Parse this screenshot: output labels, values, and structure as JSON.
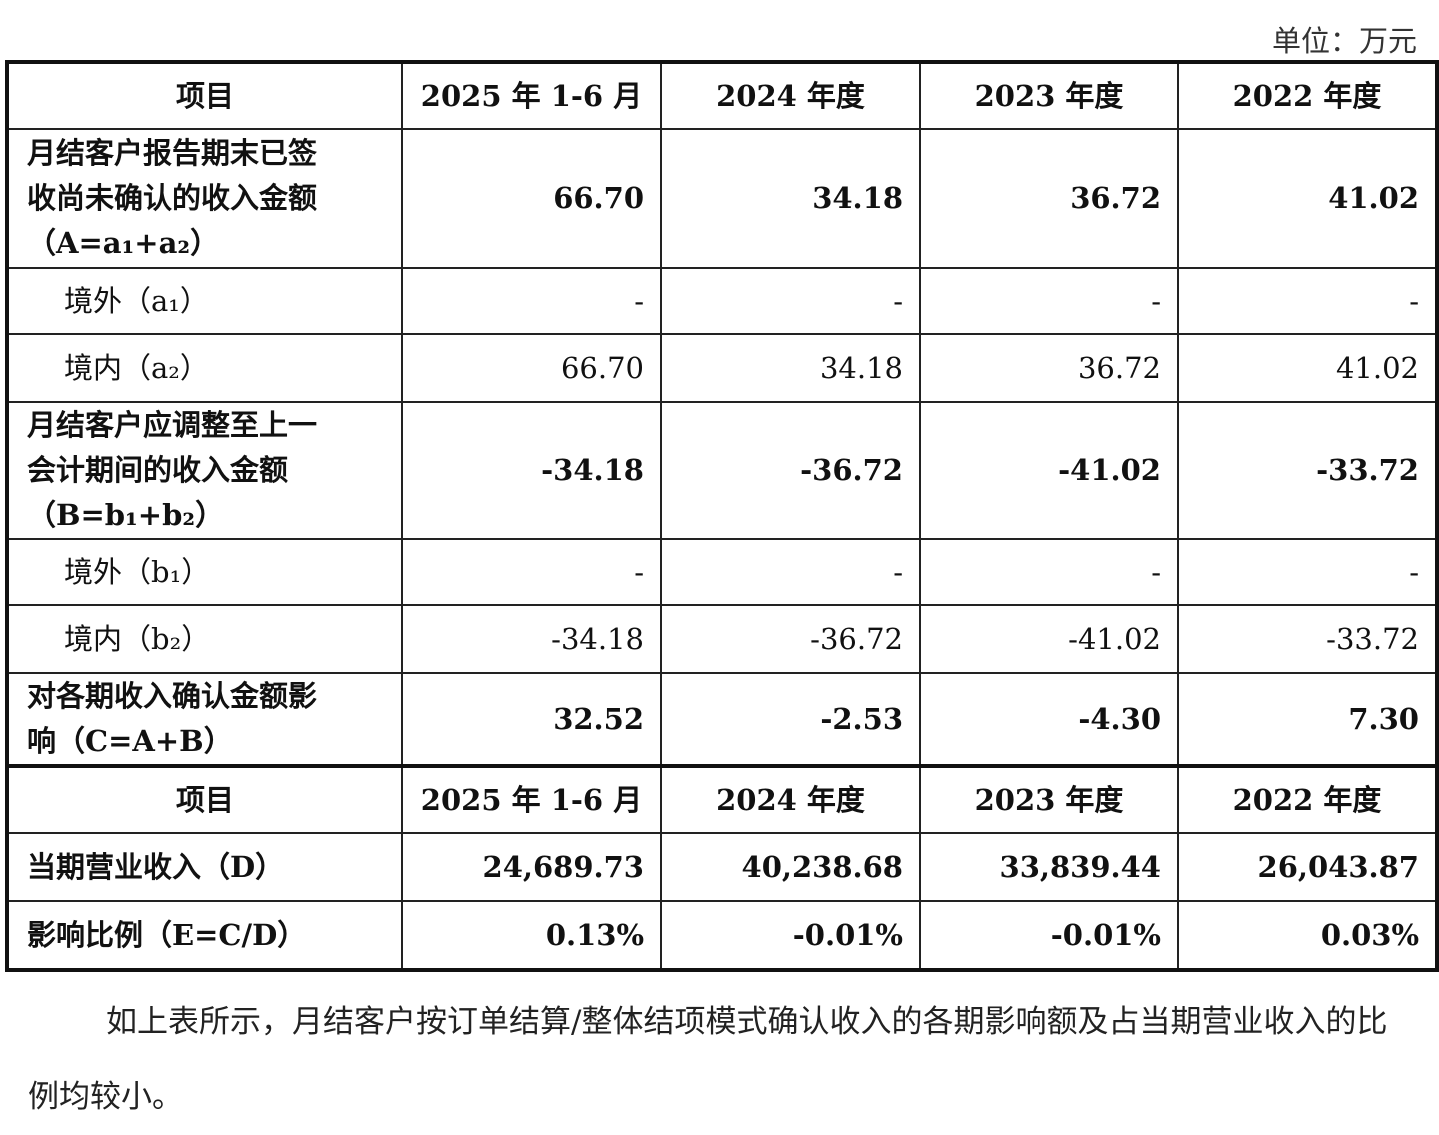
{
  "unit_label": "单位：万元",
  "header": [
    "项目",
    "2025 年 1-6 月",
    "2024 年度",
    "2023 年度",
    "2022 年度"
  ],
  "rows": [
    {
      "label": [
        "月结客户报告期末已签",
        "收尚未确认的收入金额",
        "（A=a₁+a₂）"
      ],
      "values": [
        "66.70",
        "34.18",
        "36.72",
        "41.02"
      ]
    },
    {
      "label": [
        "境外（a₁）"
      ],
      "values": [
        "-",
        "-",
        "-",
        "-"
      ]
    },
    {
      "label": [
        "境内（a₂）"
      ],
      "values": [
        "66.70",
        "34.18",
        "36.72",
        "41.02"
      ]
    },
    {
      "label": [
        "月结客户应调整至上一",
        "会计期间的收入金额",
        "（B=b₁+b₂）"
      ],
      "values": [
        "-34.18",
        "-36.72",
        "-41.02",
        "-33.72"
      ]
    },
    {
      "label": [
        "境外（b₁）"
      ],
      "values": [
        "-",
        "-",
        "-",
        "-"
      ]
    },
    {
      "label": [
        "境内（b₂）"
      ],
      "values": [
        "-34.18",
        "-36.72",
        "-41.02",
        "-33.72"
      ]
    },
    {
      "label": [
        "对各期收入确认金额影",
        "响（C=A+B）"
      ],
      "values": [
        "32.52",
        "-2.53",
        "-4.30",
        "7.30"
      ]
    }
  ],
  "header2": [
    "项目",
    "2025 年 1-6 月",
    "2024 年度",
    "2023 年度",
    "2022 年度"
  ],
  "rows2": [
    {
      "label": "当期营业收入（D）",
      "values": [
        "24,689.73",
        "40,238.68",
        "33,839.44",
        "26,043.87"
      ]
    },
    {
      "label": "影响比例（E=C/D）",
      "values": [
        "0.13%",
        "-0.01%",
        "-0.01%",
        "0.03%"
      ]
    }
  ],
  "paragraph": "如上表所示，月结客户按订单结算/整体结项模式确认收入的各期影响额及占当期营业收入的比例均较小。"
}
